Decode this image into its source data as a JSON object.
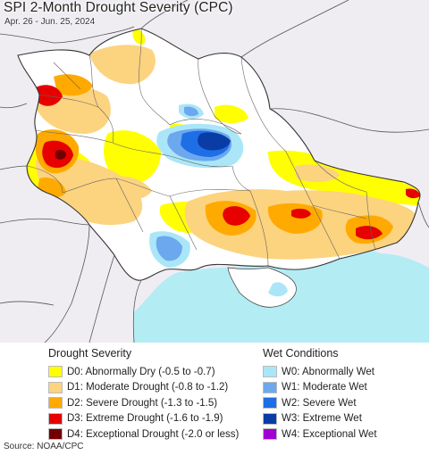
{
  "header": {
    "title": "SPI 2-Month Drought Severity (CPC)",
    "date_range": "Apr. 26 - Jun. 25, 2024"
  },
  "legend": {
    "drought": {
      "heading": "Drought Severity",
      "items": [
        {
          "label": "D0: Abnormally Dry (-0.5 to -0.7)",
          "color": "#ffff00"
        },
        {
          "label": "D1: Moderate Drought (-0.8 to -1.2)",
          "color": "#fcd37f"
        },
        {
          "label": "D2: Severe Drought (-1.3 to -1.5)",
          "color": "#ffaa00"
        },
        {
          "label": "D3: Extreme Drought (-1.6 to -1.9)",
          "color": "#e60000"
        },
        {
          "label": "D4: Exceptional Drought (-2.0 or less)",
          "color": "#730000"
        }
      ]
    },
    "wet": {
      "heading": "Wet Conditions",
      "items": [
        {
          "label": "W0: Abnormally Wet",
          "color": "#aae6f8"
        },
        {
          "label": "W1: Moderate Wet",
          "color": "#6ca8ee"
        },
        {
          "label": "W2: Severe Wet",
          "color": "#1e6ee6"
        },
        {
          "label": "W3: Extreme Wet",
          "color": "#0a3ca6"
        },
        {
          "label": "W4: Exceptional Wet",
          "color": "#a000d2"
        }
      ]
    }
  },
  "map": {
    "colors": {
      "outside_land": "#f0edf2",
      "country_land": "#ffffff",
      "sea": "#b4ecf4",
      "border": "#444444",
      "oblast_border": "#666666"
    }
  },
  "footer": {
    "source": "Source: NOAA/CPC"
  }
}
